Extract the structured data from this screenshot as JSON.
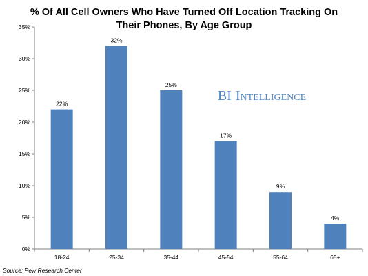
{
  "chart_data": {
    "type": "bar",
    "title_lines": [
      "% Of All Cell Owners Who Have Turned Off Location Tracking On",
      "Their Phones, By Age Group"
    ],
    "categories": [
      "18-24",
      "25-34",
      "35-44",
      "45-54",
      "55-64",
      "65+"
    ],
    "values": [
      22,
      32,
      25,
      17,
      9,
      4
    ],
    "data_labels": [
      "22%",
      "32%",
      "25%",
      "17%",
      "9%",
      "4%"
    ],
    "y_ticks": [
      0,
      5,
      10,
      15,
      20,
      25,
      30,
      35
    ],
    "y_tick_labels": [
      "0%",
      "5%",
      "10%",
      "15%",
      "20%",
      "25%",
      "30%",
      "35%"
    ],
    "ylim": [
      0,
      35
    ],
    "grid": false,
    "legend": false,
    "colors": {
      "bar": "#4f81bd",
      "axis": "#7f7f7f",
      "watermark": "#4f86c6"
    }
  },
  "watermark": {
    "big_B": "B",
    "big_I1": "I",
    "big_I2": "I",
    "small_part": "NTELLIGENCE"
  },
  "source": "Source: Pew Research Center"
}
